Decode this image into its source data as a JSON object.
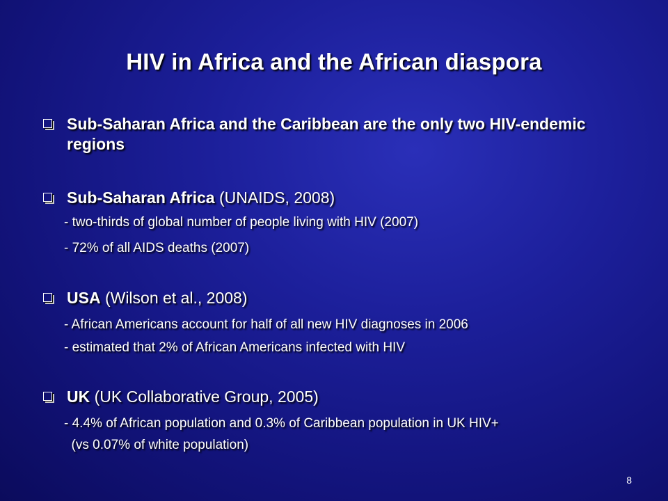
{
  "slide": {
    "title": "HIV in Africa and the African diaspora",
    "page_number": "8",
    "bullets": [
      {
        "bold": "Sub-Saharan Africa and the Caribbean are the only two HIV-endemic regions",
        "normal": "",
        "details": []
      },
      {
        "bold": "Sub-Saharan Africa",
        "normal": " (UNAIDS, 2008)",
        "details": [
          "- two-thirds of global number of people living with HIV (2007)",
          "- 72% of all AIDS deaths (2007)"
        ]
      },
      {
        "bold": "USA",
        "normal": " (Wilson et al., 2008)",
        "details": [
          "- African Americans account for half of all new HIV diagnoses in 2006",
          "- estimated that 2% of African Americans infected with HIV"
        ]
      },
      {
        "bold": "UK",
        "normal": " (UK Collaborative Group, 2005)",
        "details": [
          "- 4.4% of African population and 0.3% of Caribbean population in UK HIV+",
          "  (vs 0.07% of white population)"
        ]
      }
    ]
  },
  "colors": {
    "background": "#1a1c94",
    "text": "#ffffff"
  }
}
